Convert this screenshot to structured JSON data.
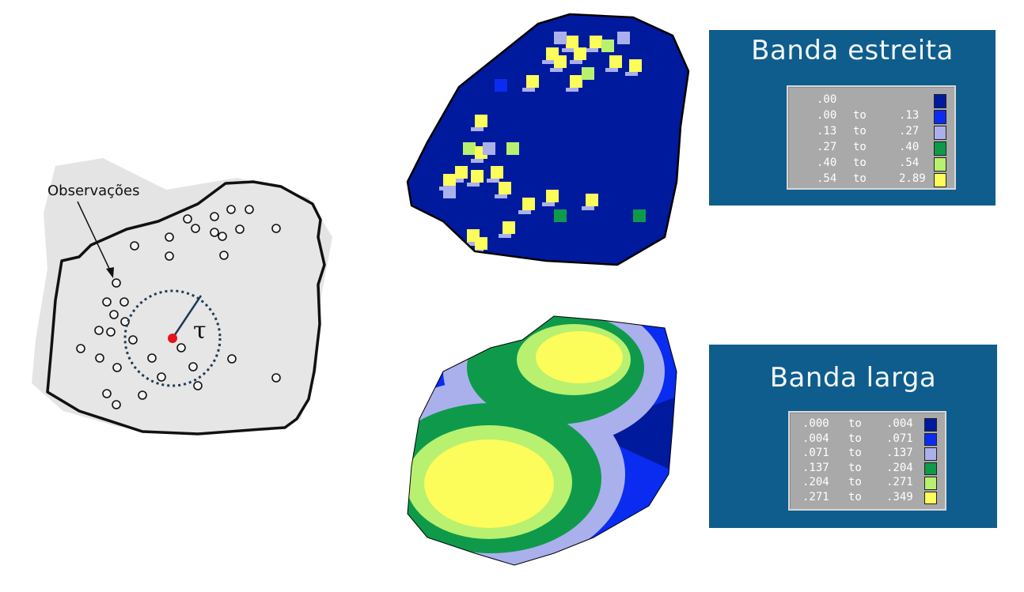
{
  "diagram": {
    "observations_label": "Observações",
    "bandwidth_symbol": "τ"
  },
  "panels": [
    {
      "title": "Banda estreita",
      "legend": [
        {
          "from": ".00",
          "to": "",
          "color": "#001a9e"
        },
        {
          "from": ".00",
          "to": ".13",
          "color": "#0a2cf0"
        },
        {
          "from": ".13",
          "to": ".27",
          "color": "#aab0ec"
        },
        {
          "from": ".27",
          "to": ".40",
          "color": "#0e9a4a"
        },
        {
          "from": ".40",
          "to": ".54",
          "color": "#b8f070"
        },
        {
          "from": ".54",
          "to": "2.89",
          "color": "#fcfc5a"
        }
      ]
    },
    {
      "title": "Banda larga",
      "legend": [
        {
          "from": ".000",
          "to": ".004",
          "color": "#001a9e"
        },
        {
          "from": ".004",
          "to": ".071",
          "color": "#0a2cf0"
        },
        {
          "from": ".071",
          "to": ".137",
          "color": "#aab0ec"
        },
        {
          "from": ".137",
          "to": ".204",
          "color": "#0e9a4a"
        },
        {
          "from": ".204",
          "to": ".271",
          "color": "#b8f070"
        },
        {
          "from": ".271",
          "to": ".349",
          "color": "#fcfc5a"
        }
      ]
    }
  ],
  "to_word": "to"
}
